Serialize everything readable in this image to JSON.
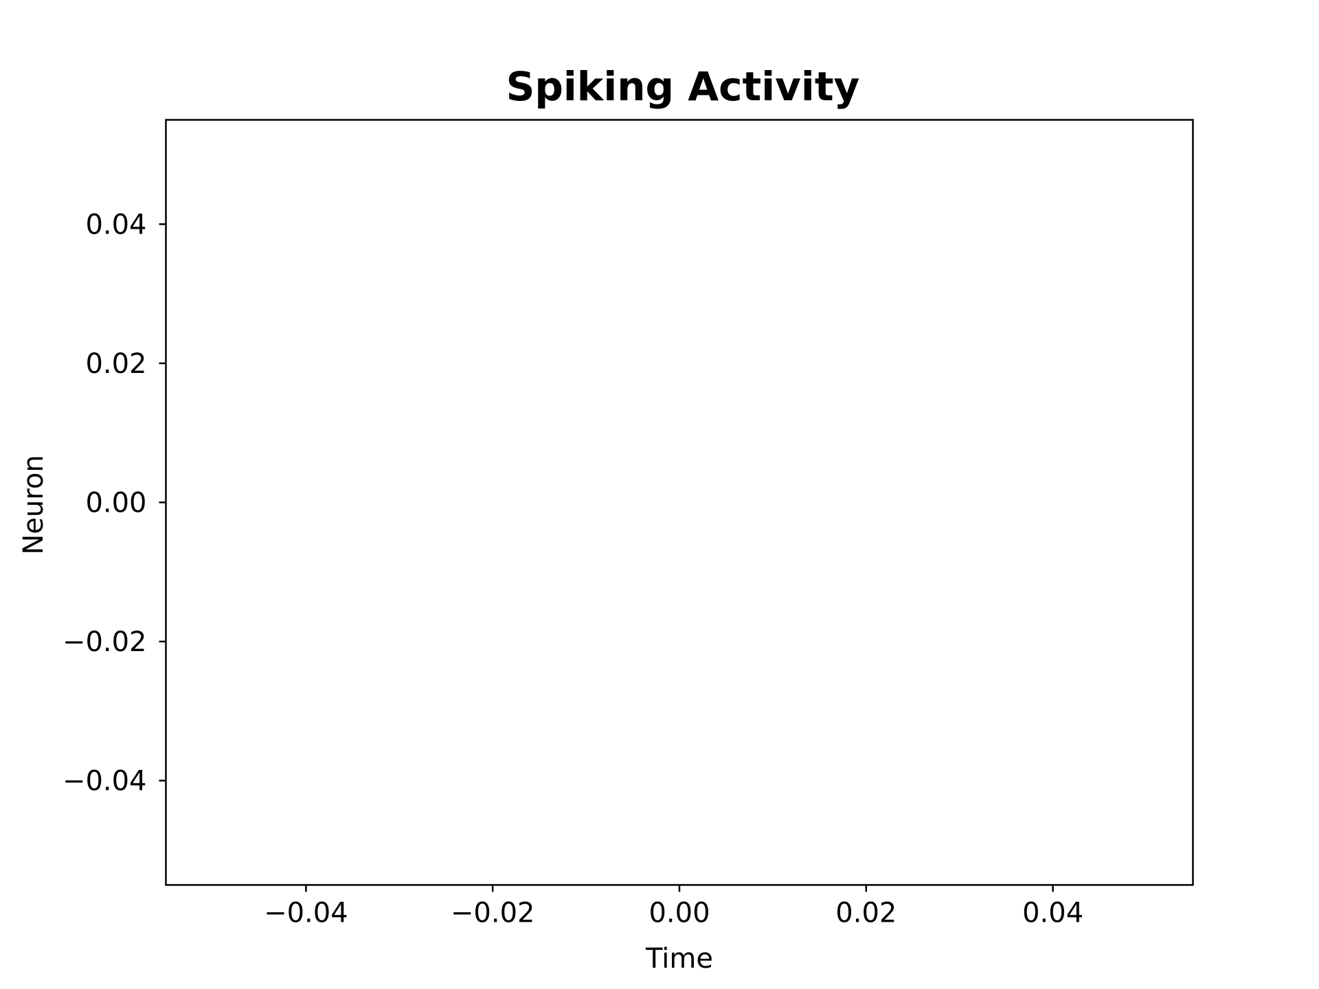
{
  "chart_data": {
    "type": "scatter",
    "title": "Spiking Activity",
    "xlabel": "Time",
    "ylabel": "Neuron",
    "xlim": [
      -0.055,
      0.055
    ],
    "ylim": [
      -0.055,
      0.055
    ],
    "x_ticks": [
      -0.04,
      -0.02,
      0.0,
      0.02,
      0.04
    ],
    "x_tick_labels": [
      "−0.04",
      "−0.02",
      "0.00",
      "0.02",
      "0.04"
    ],
    "y_ticks": [
      0.04,
      0.02,
      0.0,
      -0.02,
      -0.04
    ],
    "y_tick_labels": [
      "0.04",
      "0.02",
      "0.00",
      "−0.02",
      "−0.04"
    ],
    "series": [
      {
        "x": [],
        "y": []
      }
    ],
    "grid": false,
    "legend": "none"
  }
}
